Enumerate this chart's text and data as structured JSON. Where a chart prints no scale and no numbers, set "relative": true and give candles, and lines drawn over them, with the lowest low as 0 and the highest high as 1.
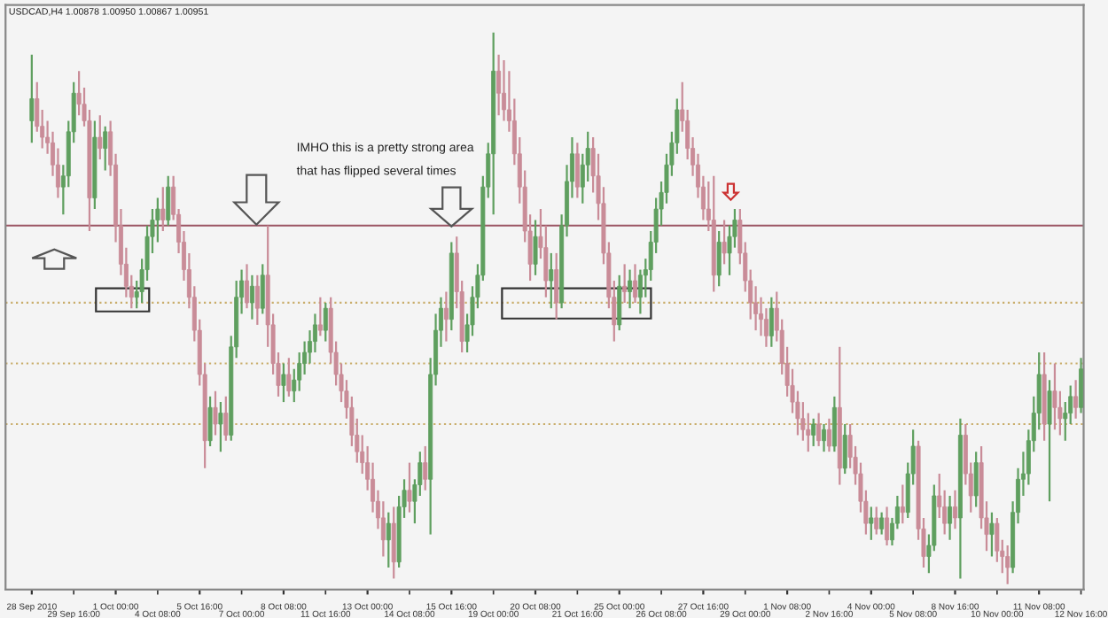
{
  "chart_data": {
    "type": "candlestick",
    "title": "USDCAD,H4 1.00878 1.00950 1.00867 1.00951",
    "relative": true,
    "annotations": [
      "IMHO this is a pretty strong area",
      "that has flipped several times"
    ],
    "colors": [
      "#5f9f5f",
      "#c98c98",
      "#c98c98",
      "#c98c98",
      "#c98c98",
      "#c98c98",
      "#5f9f5f",
      "#5f9f5f",
      "#5f9f5f",
      "#c98c98",
      "#c98c98",
      "#c98c98",
      "#5f9f5f",
      "#c98c98",
      "#5f9f5f",
      "#c98c98",
      "#c98c98",
      "#c98c98",
      "#c98c98",
      "#c98c98",
      "#5f9f5f",
      "#5f9f5f",
      "#5f9f5f",
      "#5f9f5f",
      "#5f9f5f",
      "#c98c98",
      "#5f9f5f",
      "#c98c98",
      "#c98c98",
      "#c98c98",
      "#c98c98",
      "#c98c98",
      "#c98c98",
      "#c98c98",
      "#5f9f5f",
      "#c98c98",
      "#5f9f5f",
      "#c98c98",
      "#5f9f5f",
      "#5f9f5f",
      "#5f9f5f",
      "#c98c98",
      "#5f9f5f",
      "#c98c98",
      "#5f9f5f",
      "#c98c98",
      "#c98c98",
      "#c98c98",
      "#5f9f5f",
      "#c98c98",
      "#5f9f5f",
      "#5f9f5f",
      "#5f9f5f",
      "#5f9f5f",
      "#5f9f5f",
      "#c98c98",
      "#5f9f5f",
      "#c98c98",
      "#c98c98",
      "#c98c98",
      "#c98c98",
      "#c98c98",
      "#c98c98",
      "#c98c98",
      "#c98c98",
      "#c98c98",
      "#c98c98",
      "#c98c98",
      "#5f9f5f",
      "#c98c98",
      "#5f9f5f",
      "#5f9f5f",
      "#c98c98",
      "#5f9f5f",
      "#5f9f5f",
      "#c98c98",
      "#5f9f5f",
      "#5f9f5f",
      "#5f9f5f",
      "#c98c98",
      "#5f9f5f",
      "#c98c98",
      "#c98c98",
      "#5f9f5f",
      "#5f9f5f",
      "#5f9f5f",
      "#5f9f5f",
      "#5f9f5f",
      "#5f9f5f",
      "#c98c98",
      "#c98c98",
      "#c98c98",
      "#c98c98",
      "#c98c98",
      "#c98c98",
      "#c98c98",
      "#5f9f5f",
      "#c98c98",
      "#c98c98",
      "#5f9f5f",
      "#c98c98",
      "#5f9f5f",
      "#5f9f5f",
      "#5f9f5f",
      "#c98c98",
      "#5f9f5f",
      "#5f9f5f",
      "#c98c98",
      "#c98c98",
      "#c98c98",
      "#c98c98",
      "#c98c98",
      "#5f9f5f",
      "#c98c98",
      "#5f9f5f",
      "#c98c98",
      "#5f9f5f",
      "#5f9f5f",
      "#5f9f5f",
      "#5f9f5f",
      "#5f9f5f",
      "#5f9f5f",
      "#5f9f5f",
      "#5f9f5f",
      "#c98c98",
      "#c98c98",
      "#c98c98",
      "#c98c98",
      "#c98c98",
      "#c98c98",
      "#c98c98",
      "#5f9f5f",
      "#c98c98",
      "#5f9f5f",
      "#5f9f5f",
      "#c98c98",
      "#c98c98",
      "#c98c98",
      "#c98c98",
      "#c98c98",
      "#c98c98",
      "#5f9f5f",
      "#c98c98",
      "#c98c98",
      "#c98c98",
      "#c98c98",
      "#c98c98",
      "#c98c98",
      "#c98c98",
      "#5f9f5f",
      "#c98c98",
      "#5f9f5f",
      "#c98c98",
      "#5f9f5f",
      "#c98c98",
      "#5f9f5f",
      "#c98c98",
      "#c98c98",
      "#c98c98",
      "#c98c98",
      "#5f9f5f",
      "#c98c98",
      "#5f9f5f",
      "#c98c98",
      "#5f9f5f",
      "#5f9f5f",
      "#c98c98",
      "#5f9f5f",
      "#5f9f5f",
      "#c98c98",
      "#c98c98",
      "#5f9f5f",
      "#5f9f5f",
      "#c98c98",
      "#c98c98",
      "#5f9f5f",
      "#c98c98",
      "#5f9f5f",
      "#c98c98",
      "#c98c98",
      "#5f9f5f",
      "#c98c98",
      "#c98c98",
      "#5f9f5f",
      "#c98c98",
      "#c98c98",
      "#c98c98",
      "#5f9f5f",
      "#5f9f5f",
      "#5f9f5f",
      "#5f9f5f",
      "#5f9f5f",
      "#5f9f5f",
      "#c98c98",
      "#5f9f5f",
      "#c98c98",
      "#c98c98",
      "#5f9f5f",
      "#5f9f5f",
      "#c98c98",
      "#5f9f5f"
    ],
    "ref_lines": [
      {
        "axis": "y",
        "value": 0.65,
        "color": "#9b5563",
        "line_style": "solid"
      },
      {
        "axis": "y",
        "value": 0.51,
        "color": "#c9ad6a",
        "line_style": "dotted"
      },
      {
        "axis": "y",
        "value": 0.4,
        "color": "#c9ad6a",
        "line_style": "dotted"
      },
      {
        "axis": "y",
        "value": 0.29,
        "color": "#c9ad6a",
        "line_style": "dotted"
      }
    ],
    "categories": [
      "28 Sep 2010",
      null,
      null,
      null,
      null,
      null,
      null,
      null,
      "29 Sep 16:00",
      null,
      null,
      null,
      null,
      null,
      null,
      null,
      "1 Oct 00:00",
      null,
      null,
      null,
      null,
      null,
      null,
      null,
      "4 Oct 08:00",
      null,
      null,
      null,
      null,
      null,
      null,
      null,
      "5 Oct 16:00",
      null,
      null,
      null,
      null,
      null,
      null,
      null,
      "7 Oct 00:00",
      null,
      null,
      null,
      null,
      null,
      null,
      null,
      "8 Oct 08:00",
      null,
      null,
      null,
      null,
      null,
      null,
      null,
      "11 Oct 16:00",
      null,
      null,
      null,
      null,
      null,
      null,
      null,
      "13 Oct 00:00",
      null,
      null,
      null,
      null,
      null,
      null,
      null,
      "14 Oct 08:00",
      null,
      null,
      null,
      null,
      null,
      null,
      null,
      "15 Oct 16:00",
      null,
      null,
      null,
      null,
      null,
      null,
      null,
      "19 Oct 00:00",
      null,
      null,
      null,
      null,
      null,
      null,
      null,
      "20 Oct 08:00",
      null,
      null,
      null,
      null,
      null,
      null,
      null,
      "21 Oct 16:00",
      null,
      null,
      null,
      null,
      null,
      null,
      null,
      "25 Oct 00:00",
      null,
      null,
      null,
      null,
      null,
      null,
      null,
      "26 Oct 08:00",
      null,
      null,
      null,
      null,
      null,
      null,
      null,
      "27 Oct 16:00",
      null,
      null,
      null,
      null,
      null,
      null,
      null,
      "29 Oct 00:00",
      null,
      null,
      null,
      null,
      null,
      null,
      null,
      "1 Nov 08:00",
      null,
      null,
      null,
      null,
      null,
      null,
      null,
      "2 Nov 16:00",
      null,
      null,
      null,
      null,
      null,
      null,
      null,
      "4 Nov 00:00",
      null,
      null,
      null,
      null,
      null,
      null,
      null,
      "5 Nov 08:00",
      null,
      null,
      null,
      null,
      null,
      null,
      null,
      "8 Nov 16:00",
      null,
      null,
      null,
      null,
      null,
      null,
      null,
      "10 Nov 00:00",
      null,
      null,
      null,
      null,
      null,
      null,
      null,
      "11 Nov 08:00",
      null,
      null,
      null,
      null,
      null,
      null,
      null,
      "12 Nov 16:00"
    ],
    "ohlc": [
      [
        0.84,
        0.96,
        0.8,
        0.88
      ],
      [
        0.88,
        0.91,
        0.82,
        0.83
      ],
      [
        0.83,
        0.86,
        0.79,
        0.81
      ],
      [
        0.81,
        0.84,
        0.78,
        0.8
      ],
      [
        0.8,
        0.82,
        0.74,
        0.76
      ],
      [
        0.76,
        0.79,
        0.7,
        0.72
      ],
      [
        0.72,
        0.76,
        0.67,
        0.74
      ],
      [
        0.74,
        0.84,
        0.72,
        0.82
      ],
      [
        0.82,
        0.91,
        0.8,
        0.89
      ],
      [
        0.89,
        0.93,
        0.85,
        0.87
      ],
      [
        0.87,
        0.9,
        0.83,
        0.84
      ],
      [
        0.84,
        0.86,
        0.64,
        0.7
      ],
      [
        0.7,
        0.84,
        0.68,
        0.81
      ],
      [
        0.81,
        0.85,
        0.77,
        0.79
      ],
      [
        0.79,
        0.83,
        0.75,
        0.82
      ],
      [
        0.82,
        0.84,
        0.74,
        0.76
      ],
      [
        0.76,
        0.78,
        0.62,
        0.65
      ],
      [
        0.65,
        0.68,
        0.56,
        0.58
      ],
      [
        0.58,
        0.61,
        0.52,
        0.54
      ],
      [
        0.54,
        0.56,
        0.5,
        0.52
      ],
      [
        0.52,
        0.55,
        0.5,
        0.53
      ],
      [
        0.53,
        0.59,
        0.51,
        0.57
      ],
      [
        0.57,
        0.65,
        0.55,
        0.63
      ],
      [
        0.63,
        0.68,
        0.6,
        0.66
      ],
      [
        0.66,
        0.7,
        0.62,
        0.68
      ],
      [
        0.68,
        0.72,
        0.64,
        0.66
      ],
      [
        0.66,
        0.74,
        0.65,
        0.72
      ],
      [
        0.72,
        0.74,
        0.66,
        0.67
      ],
      [
        0.67,
        0.68,
        0.6,
        0.62
      ],
      [
        0.62,
        0.64,
        0.55,
        0.57
      ],
      [
        0.57,
        0.6,
        0.5,
        0.52
      ],
      [
        0.52,
        0.54,
        0.44,
        0.46
      ],
      [
        0.46,
        0.48,
        0.36,
        0.38
      ],
      [
        0.38,
        0.4,
        0.21,
        0.26
      ],
      [
        0.26,
        0.34,
        0.25,
        0.32
      ],
      [
        0.32,
        0.35,
        0.27,
        0.29
      ],
      [
        0.29,
        0.33,
        0.24,
        0.31
      ],
      [
        0.31,
        0.34,
        0.26,
        0.27
      ],
      [
        0.27,
        0.45,
        0.26,
        0.43
      ],
      [
        0.43,
        0.55,
        0.41,
        0.52
      ],
      [
        0.52,
        0.57,
        0.49,
        0.55
      ],
      [
        0.55,
        0.58,
        0.5,
        0.51
      ],
      [
        0.51,
        0.56,
        0.48,
        0.54
      ],
      [
        0.54,
        0.56,
        0.47,
        0.5
      ],
      [
        0.5,
        0.58,
        0.49,
        0.56
      ],
      [
        0.56,
        0.65,
        0.43,
        0.47
      ],
      [
        0.47,
        0.49,
        0.38,
        0.4
      ],
      [
        0.4,
        0.42,
        0.34,
        0.36
      ],
      [
        0.36,
        0.4,
        0.33,
        0.38
      ],
      [
        0.38,
        0.41,
        0.34,
        0.35
      ],
      [
        0.35,
        0.39,
        0.33,
        0.37
      ],
      [
        0.37,
        0.42,
        0.35,
        0.4
      ],
      [
        0.4,
        0.44,
        0.38,
        0.42
      ],
      [
        0.42,
        0.46,
        0.4,
        0.44
      ],
      [
        0.44,
        0.49,
        0.42,
        0.47
      ],
      [
        0.47,
        0.52,
        0.45,
        0.46
      ],
      [
        0.46,
        0.51,
        0.44,
        0.5
      ],
      [
        0.5,
        0.52,
        0.4,
        0.42
      ],
      [
        0.42,
        0.44,
        0.36,
        0.38
      ],
      [
        0.38,
        0.4,
        0.33,
        0.35
      ],
      [
        0.35,
        0.37,
        0.3,
        0.32
      ],
      [
        0.32,
        0.34,
        0.25,
        0.27
      ],
      [
        0.27,
        0.3,
        0.22,
        0.24
      ],
      [
        0.24,
        0.27,
        0.2,
        0.22
      ],
      [
        0.22,
        0.25,
        0.17,
        0.19
      ],
      [
        0.19,
        0.22,
        0.13,
        0.15
      ],
      [
        0.15,
        0.17,
        0.1,
        0.12
      ],
      [
        0.12,
        0.15,
        0.05,
        0.08
      ],
      [
        0.08,
        0.13,
        0.03,
        0.11
      ],
      [
        0.11,
        0.14,
        0.01,
        0.04
      ],
      [
        0.04,
        0.16,
        0.03,
        0.14
      ],
      [
        0.14,
        0.19,
        0.12,
        0.17
      ],
      [
        0.17,
        0.22,
        0.13,
        0.15
      ],
      [
        0.15,
        0.19,
        0.11,
        0.18
      ],
      [
        0.18,
        0.24,
        0.16,
        0.22
      ],
      [
        0.22,
        0.25,
        0.17,
        0.19
      ],
      [
        0.19,
        0.41,
        0.09,
        0.38
      ],
      [
        0.38,
        0.49,
        0.36,
        0.46
      ],
      [
        0.46,
        0.52,
        0.43,
        0.5
      ],
      [
        0.5,
        0.53,
        0.44,
        0.48
      ],
      [
        0.48,
        0.62,
        0.46,
        0.6
      ],
      [
        0.6,
        0.63,
        0.5,
        0.53
      ],
      [
        0.53,
        0.55,
        0.42,
        0.44
      ],
      [
        0.44,
        0.49,
        0.42,
        0.47
      ],
      [
        0.47,
        0.54,
        0.45,
        0.52
      ],
      [
        0.52,
        0.58,
        0.5,
        0.56
      ],
      [
        0.56,
        0.74,
        0.55,
        0.72
      ],
      [
        0.72,
        0.8,
        0.7,
        0.78
      ],
      [
        0.78,
        1.0,
        0.67,
        0.93
      ],
      [
        0.93,
        0.96,
        0.85,
        0.89
      ],
      [
        0.89,
        0.95,
        0.84,
        0.86
      ],
      [
        0.86,
        0.93,
        0.82,
        0.84
      ],
      [
        0.84,
        0.88,
        0.76,
        0.78
      ],
      [
        0.78,
        0.81,
        0.69,
        0.72
      ],
      [
        0.72,
        0.75,
        0.62,
        0.64
      ],
      [
        0.64,
        0.67,
        0.55,
        0.58
      ],
      [
        0.58,
        0.66,
        0.56,
        0.63
      ],
      [
        0.63,
        0.68,
        0.59,
        0.61
      ],
      [
        0.61,
        0.65,
        0.52,
        0.55
      ],
      [
        0.55,
        0.6,
        0.5,
        0.57
      ],
      [
        0.57,
        0.6,
        0.48,
        0.51
      ],
      [
        0.51,
        0.67,
        0.5,
        0.65
      ],
      [
        0.65,
        0.76,
        0.63,
        0.73
      ],
      [
        0.73,
        0.81,
        0.7,
        0.78
      ],
      [
        0.78,
        0.8,
        0.7,
        0.72
      ],
      [
        0.72,
        0.78,
        0.69,
        0.76
      ],
      [
        0.76,
        0.82,
        0.73,
        0.79
      ],
      [
        0.79,
        0.81,
        0.71,
        0.74
      ],
      [
        0.74,
        0.78,
        0.66,
        0.69
      ],
      [
        0.69,
        0.72,
        0.58,
        0.6
      ],
      [
        0.6,
        0.62,
        0.5,
        0.52
      ],
      [
        0.52,
        0.55,
        0.44,
        0.47
      ],
      [
        0.47,
        0.56,
        0.46,
        0.54
      ],
      [
        0.54,
        0.58,
        0.51,
        0.53
      ],
      [
        0.53,
        0.57,
        0.5,
        0.55
      ],
      [
        0.55,
        0.58,
        0.51,
        0.52
      ],
      [
        0.52,
        0.57,
        0.49,
        0.56
      ],
      [
        0.56,
        0.59,
        0.52,
        0.57
      ],
      [
        0.57,
        0.64,
        0.55,
        0.62
      ],
      [
        0.62,
        0.7,
        0.6,
        0.68
      ],
      [
        0.68,
        0.73,
        0.65,
        0.71
      ],
      [
        0.71,
        0.78,
        0.69,
        0.76
      ],
      [
        0.76,
        0.82,
        0.74,
        0.8
      ],
      [
        0.8,
        0.88,
        0.78,
        0.86
      ],
      [
        0.86,
        0.91,
        0.82,
        0.84
      ],
      [
        0.84,
        0.86,
        0.77,
        0.79
      ],
      [
        0.79,
        0.81,
        0.74,
        0.76
      ],
      [
        0.76,
        0.78,
        0.7,
        0.72
      ],
      [
        0.72,
        0.74,
        0.66,
        0.68
      ],
      [
        0.68,
        0.73,
        0.64,
        0.66
      ],
      [
        0.66,
        0.74,
        0.53,
        0.56
      ],
      [
        0.56,
        0.64,
        0.54,
        0.62
      ],
      [
        0.62,
        0.66,
        0.58,
        0.6
      ],
      [
        0.6,
        0.65,
        0.56,
        0.63
      ],
      [
        0.63,
        0.68,
        0.61,
        0.66
      ],
      [
        0.66,
        0.68,
        0.58,
        0.6
      ],
      [
        0.6,
        0.62,
        0.53,
        0.55
      ],
      [
        0.55,
        0.57,
        0.48,
        0.51
      ],
      [
        0.51,
        0.54,
        0.46,
        0.49
      ],
      [
        0.49,
        0.52,
        0.45,
        0.48
      ],
      [
        0.48,
        0.5,
        0.43,
        0.45
      ],
      [
        0.45,
        0.52,
        0.43,
        0.5
      ],
      [
        0.5,
        0.53,
        0.44,
        0.46
      ],
      [
        0.46,
        0.48,
        0.38,
        0.4
      ],
      [
        0.4,
        0.43,
        0.34,
        0.36
      ],
      [
        0.36,
        0.39,
        0.31,
        0.33
      ],
      [
        0.33,
        0.35,
        0.27,
        0.3
      ],
      [
        0.3,
        0.33,
        0.26,
        0.28
      ],
      [
        0.28,
        0.31,
        0.24,
        0.27
      ],
      [
        0.27,
        0.3,
        0.25,
        0.29
      ],
      [
        0.29,
        0.31,
        0.25,
        0.26
      ],
      [
        0.26,
        0.29,
        0.24,
        0.28
      ],
      [
        0.28,
        0.3,
        0.24,
        0.25
      ],
      [
        0.25,
        0.34,
        0.24,
        0.32
      ],
      [
        0.32,
        0.43,
        0.18,
        0.21
      ],
      [
        0.21,
        0.29,
        0.2,
        0.27
      ],
      [
        0.27,
        0.29,
        0.21,
        0.23
      ],
      [
        0.23,
        0.25,
        0.18,
        0.2
      ],
      [
        0.2,
        0.22,
        0.13,
        0.15
      ],
      [
        0.15,
        0.17,
        0.09,
        0.11
      ],
      [
        0.11,
        0.14,
        0.08,
        0.12
      ],
      [
        0.12,
        0.14,
        0.09,
        0.1
      ],
      [
        0.1,
        0.13,
        0.09,
        0.12
      ],
      [
        0.12,
        0.14,
        0.07,
        0.08
      ],
      [
        0.08,
        0.12,
        0.07,
        0.11
      ],
      [
        0.11,
        0.16,
        0.1,
        0.14
      ],
      [
        0.14,
        0.18,
        0.11,
        0.13
      ],
      [
        0.13,
        0.22,
        0.12,
        0.2
      ],
      [
        0.2,
        0.28,
        0.18,
        0.25
      ],
      [
        0.25,
        0.26,
        0.08,
        0.1
      ],
      [
        0.1,
        0.12,
        0.03,
        0.05
      ],
      [
        0.05,
        0.09,
        0.02,
        0.07
      ],
      [
        0.07,
        0.18,
        0.06,
        0.16
      ],
      [
        0.16,
        0.2,
        0.12,
        0.14
      ],
      [
        0.14,
        0.17,
        0.09,
        0.11
      ],
      [
        0.11,
        0.16,
        0.08,
        0.14
      ],
      [
        0.14,
        0.17,
        0.1,
        0.12
      ],
      [
        0.12,
        0.3,
        0.01,
        0.27
      ],
      [
        0.27,
        0.29,
        0.18,
        0.2
      ],
      [
        0.2,
        0.22,
        0.13,
        0.16
      ],
      [
        0.16,
        0.24,
        0.14,
        0.22
      ],
      [
        0.22,
        0.25,
        0.1,
        0.12
      ],
      [
        0.12,
        0.15,
        0.06,
        0.09
      ],
      [
        0.09,
        0.13,
        0.05,
        0.11
      ],
      [
        0.11,
        0.12,
        0.04,
        0.06
      ],
      [
        0.06,
        0.08,
        0.02,
        0.05
      ],
      [
        0.05,
        0.07,
        0.0,
        0.03
      ],
      [
        0.03,
        0.15,
        0.02,
        0.13
      ],
      [
        0.13,
        0.21,
        0.11,
        0.19
      ],
      [
        0.19,
        0.24,
        0.16,
        0.2
      ],
      [
        0.2,
        0.28,
        0.18,
        0.26
      ],
      [
        0.26,
        0.34,
        0.24,
        0.31
      ],
      [
        0.31,
        0.42,
        0.28,
        0.38
      ],
      [
        0.38,
        0.42,
        0.26,
        0.29
      ],
      [
        0.29,
        0.37,
        0.15,
        0.35
      ],
      [
        0.35,
        0.4,
        0.28,
        0.32
      ],
      [
        0.32,
        0.35,
        0.27,
        0.3
      ],
      [
        0.3,
        0.33,
        0.26,
        0.31
      ],
      [
        0.31,
        0.36,
        0.29,
        0.34
      ],
      [
        0.34,
        0.37,
        0.3,
        0.32
      ],
      [
        0.32,
        0.41,
        0.31,
        0.39
      ]
    ]
  }
}
